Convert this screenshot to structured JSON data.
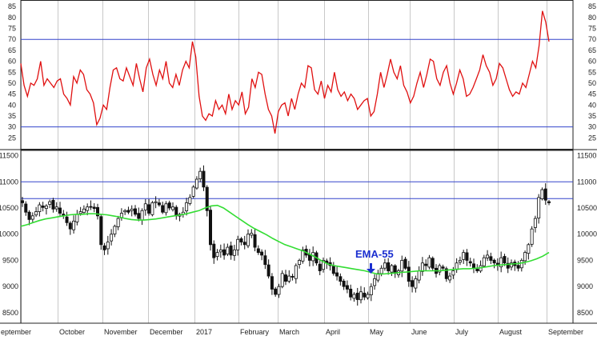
{
  "chart_data": [
    {
      "type": "line",
      "panel": "oscillator",
      "title": "",
      "xlabel": "",
      "ylabel": "",
      "ylim": [
        20,
        88
      ],
      "yticks": [
        25,
        30,
        35,
        40,
        45,
        50,
        55,
        60,
        65,
        70,
        75,
        80,
        85
      ],
      "reference_lines": [
        70,
        30
      ],
      "grid": "vertical at month starts",
      "series": [
        {
          "color": "#e01010",
          "values": [
            59,
            49,
            44,
            50,
            49,
            52,
            60,
            49,
            52,
            50,
            48,
            51,
            52,
            45,
            43,
            40,
            53,
            50,
            56,
            54,
            47,
            45,
            41,
            31,
            34,
            40,
            38,
            48,
            56,
            57,
            52,
            51,
            57,
            53,
            49,
            59,
            52,
            46,
            57,
            61,
            54,
            49,
            56,
            52,
            60,
            50,
            48,
            54,
            49,
            56,
            60,
            57,
            69,
            62,
            44,
            35,
            33,
            36,
            35,
            42,
            38,
            40,
            36,
            45,
            38,
            42,
            40,
            46,
            36,
            39,
            52,
            48,
            55,
            54,
            45,
            38,
            35,
            27,
            37,
            40,
            41,
            35,
            43,
            38,
            45,
            50,
            48,
            58,
            57,
            47,
            45,
            51,
            43,
            49,
            46,
            55,
            47,
            44,
            46,
            42,
            45,
            43,
            38,
            40,
            42,
            43,
            35,
            37,
            45,
            55,
            48,
            54,
            61,
            55,
            52,
            58,
            49,
            46,
            41,
            44,
            50,
            55,
            48,
            54,
            61,
            60,
            52,
            49,
            55,
            58,
            50,
            45,
            50,
            56,
            52,
            44,
            45,
            48,
            52,
            56,
            63,
            58,
            55,
            49,
            52,
            59,
            57,
            52,
            47,
            44,
            46,
            45,
            50,
            48,
            54,
            60,
            57,
            67,
            83,
            78,
            69
          ]
        }
      ]
    },
    {
      "type": "candlestick",
      "panel": "price",
      "title": "",
      "xlabel": "",
      "ylabel": "",
      "ylim": [
        8300,
        11600
      ],
      "yticks": [
        8500,
        9000,
        9500,
        10000,
        10500,
        11000,
        11500
      ],
      "reference_lines": [
        11000,
        10680
      ],
      "x_month_labels": [
        "eptember",
        "October",
        "November",
        "December",
        "2017",
        "February",
        "March",
        "April",
        "May",
        "June",
        "July",
        "August",
        "September"
      ],
      "closes": [
        10600,
        10420,
        10280,
        10350,
        10430,
        10560,
        10510,
        10540,
        10620,
        10480,
        10520,
        10400,
        10350,
        10220,
        10100,
        10250,
        10380,
        10430,
        10480,
        10520,
        10520,
        10490,
        10350,
        9800,
        9700,
        9850,
        10000,
        10150,
        10300,
        10400,
        10450,
        10420,
        10480,
        10380,
        10300,
        10450,
        10580,
        10400,
        10600,
        10620,
        10560,
        10420,
        10580,
        10500,
        10520,
        10350,
        10380,
        10420,
        10600,
        10700,
        10900,
        11050,
        11200,
        10900,
        10450,
        9800,
        9550,
        9650,
        9700,
        9600,
        9750,
        9600,
        9700,
        9900,
        9850,
        9800,
        10000,
        10020,
        9750,
        9650,
        9600,
        9420,
        9200,
        8950,
        8850,
        9000,
        9250,
        9100,
        9200,
        9180,
        9400,
        9500,
        9700,
        9600,
        9500,
        9650,
        9450,
        9300,
        9500,
        9450,
        9400,
        9250,
        9200,
        9100,
        9000,
        8950,
        8800,
        8850,
        8750,
        8900,
        8800,
        8850,
        9000,
        9150,
        9250,
        9350,
        9450,
        9300,
        9400,
        9250,
        9300,
        9500,
        9350,
        9100,
        9000,
        9150,
        9300,
        9450,
        9400,
        9550,
        9350,
        9250,
        9400,
        9350,
        9150,
        9200,
        9300,
        9450,
        9500,
        9650,
        9500,
        9450,
        9350,
        9300,
        9400,
        9550,
        9600,
        9500,
        9450,
        9400,
        9550,
        9450,
        9350,
        9450,
        9400,
        9350,
        9500,
        9650,
        9800,
        10100,
        10300,
        10700,
        10850,
        10650,
        10600
      ],
      "ema_55": {
        "color": "#33dd33",
        "label": "EMA-55",
        "values": [
          10150,
          10180,
          10220,
          10260,
          10290,
          10310,
          10330,
          10350,
          10370,
          10380,
          10380,
          10390,
          10390,
          10380,
          10370,
          10350,
          10330,
          10300,
          10280,
          10270,
          10270,
          10280,
          10290,
          10310,
          10330,
          10350,
          10370,
          10390,
          10420,
          10450,
          10500,
          10540,
          10550,
          10500,
          10420,
          10340,
          10260,
          10180,
          10110,
          10050,
          9990,
          9920,
          9860,
          9800,
          9760,
          9720,
          9680,
          9620,
          9560,
          9490,
          9430,
          9400,
          9380,
          9360,
          9340,
          9320,
          9300,
          9270,
          9240,
          9240,
          9250,
          9260,
          9270,
          9280,
          9290,
          9300,
          9300,
          9300,
          9300,
          9310,
          9320,
          9330,
          9340,
          9340,
          9350,
          9360,
          9380,
          9400,
          9410,
          9420,
          9430,
          9440,
          9460,
          9490,
          9530,
          9580,
          9650
        ],
        "knot_x_frac_note": "ema values evenly spaced across plotted time range"
      }
    }
  ],
  "annotation": {
    "text": "EMA-55"
  }
}
